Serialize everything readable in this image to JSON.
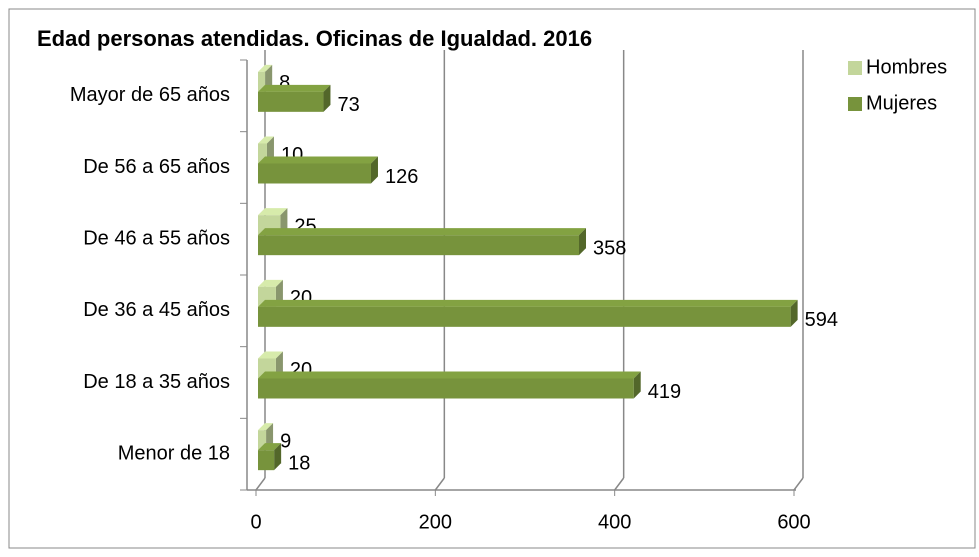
{
  "chart_data": {
    "type": "bar",
    "orientation": "horizontal",
    "title": "Edad personas atendidas. Oficinas de Igualdad. 2016",
    "categories": [
      "Mayor de 65 años",
      "De 56 a 65 años",
      "De 46 a 55 años",
      "De 36 a 45 años",
      "De 18 a 35 años",
      "Menor de 18"
    ],
    "series": [
      {
        "name": "Hombres",
        "color": "#c3d69b",
        "values": [
          8,
          10,
          25,
          20,
          20,
          9
        ]
      },
      {
        "name": "Mujeres",
        "color": "#77933c",
        "values": [
          73,
          126,
          358,
          594,
          419,
          18
        ]
      }
    ],
    "xlim": [
      0,
      600
    ],
    "xticks": [
      0,
      200,
      400,
      600
    ],
    "grid": true,
    "legend": "right"
  }
}
